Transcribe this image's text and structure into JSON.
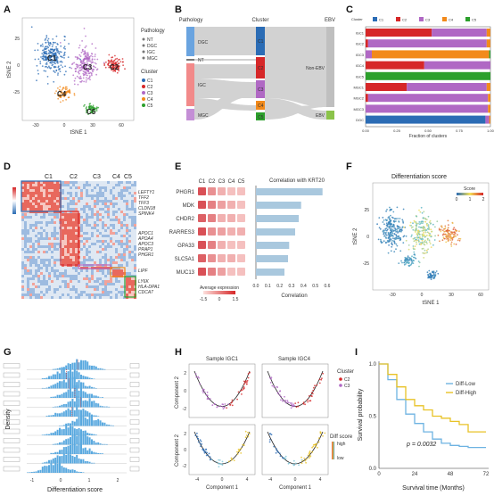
{
  "colors": {
    "C1": "#2b6cb5",
    "C2": "#d62728",
    "C3": "#b068c4",
    "C4": "#f28a1b",
    "C5": "#2ca02c",
    "blue_light": "#6eb3e2",
    "pathology_DGC": "#6aa4e0",
    "pathology_NT": "#777777",
    "pathology_IGC": "#f28a8a",
    "pathology_MGC": "#c48fd6"
  },
  "panelA": {
    "label": "A",
    "xlabel": "tSNE 1",
    "ylabel": "tSNE 2",
    "xticks": [
      "-30",
      "0",
      "30",
      "60"
    ],
    "yticks": [
      "25",
      "0",
      "-25"
    ],
    "cluster_labels": [
      "C1",
      "C2",
      "C3",
      "C4",
      "C5"
    ],
    "legend_pathology_title": "Pathology",
    "legend_pathology": [
      "NT",
      "DGC",
      "IGC",
      "MGC"
    ],
    "legend_cluster_title": "Cluster",
    "legend_cluster": [
      "C1",
      "C2",
      "C3",
      "C4",
      "C5"
    ]
  },
  "panelB": {
    "label": "B",
    "col_titles": [
      "Pathology",
      "Cluster",
      "EBV"
    ],
    "pathology": [
      "DGC",
      "NT",
      "IGC",
      "MGC"
    ],
    "cluster": [
      "C1",
      "C2",
      "C3",
      "C4",
      "C5"
    ],
    "ebv": [
      "Non-EBV",
      "EBV"
    ]
  },
  "panelC": {
    "label": "C",
    "legend_title": "Cluster",
    "legend": [
      "C1",
      "C2",
      "C3",
      "C4",
      "C5"
    ],
    "xlabel": "Fraction of clusters",
    "xticks": [
      "0.00",
      "0.25",
      "0.50",
      "0.75",
      "1.00"
    ]
  },
  "chart_data": [
    {
      "type": "bar",
      "orientation": "horizontal-stacked",
      "categories": [
        "IGC1",
        "IGC2",
        "IGC3",
        "IGC4",
        "IGC5",
        "MGC1",
        "MGC2",
        "MGC3",
        "DGC"
      ],
      "series": [
        {
          "name": "C1",
          "values": [
            0.0,
            0.0,
            0.0,
            0.0,
            0.0,
            0.0,
            0.0,
            0.0,
            0.96
          ]
        },
        {
          "name": "C2",
          "values": [
            0.53,
            0.02,
            0.0,
            0.47,
            0.0,
            0.33,
            0.02,
            0.0,
            0.0
          ]
        },
        {
          "name": "C3",
          "values": [
            0.44,
            0.95,
            0.05,
            0.53,
            0.0,
            0.64,
            0.96,
            0.98,
            0.03
          ]
        },
        {
          "name": "C4",
          "values": [
            0.03,
            0.03,
            0.94,
            0.0,
            0.0,
            0.03,
            0.02,
            0.02,
            0.01
          ]
        },
        {
          "name": "C5",
          "values": [
            0.0,
            0.0,
            0.01,
            0.0,
            1.0,
            0.0,
            0.0,
            0.0,
            0.0
          ]
        }
      ],
      "xlabel": "Fraction of clusters",
      "xlim": [
        0,
        1
      ]
    },
    {
      "type": "bar",
      "orientation": "horizontal",
      "categories": [
        "PHGR1",
        "MDK",
        "CHDR2",
        "RARRES3",
        "GPA33",
        "SLC5A1",
        "MUC13"
      ],
      "values": [
        0.56,
        0.38,
        0.36,
        0.33,
        0.28,
        0.27,
        0.24
      ],
      "title": "Correlation with KRT20",
      "xlabel": "Correlation",
      "xlim": [
        0,
        0.6
      ]
    },
    {
      "type": "line",
      "title": "",
      "xlabel": "Survival time (Months)",
      "ylabel": "Survival probability",
      "series": [
        {
          "name": "Diff-Low",
          "x": [
            0,
            6,
            12,
            18,
            24,
            30,
            36,
            42,
            48,
            54,
            60,
            72
          ],
          "y": [
            1.0,
            0.85,
            0.66,
            0.52,
            0.43,
            0.35,
            0.28,
            0.24,
            0.22,
            0.21,
            0.2,
            0.2
          ]
        },
        {
          "name": "Diff-High",
          "x": [
            0,
            6,
            12,
            18,
            24,
            30,
            36,
            42,
            48,
            54,
            60,
            72
          ],
          "y": [
            1.0,
            0.9,
            0.78,
            0.66,
            0.6,
            0.56,
            0.5,
            0.48,
            0.45,
            0.42,
            0.35,
            0.35
          ]
        }
      ],
      "xlim": [
        0,
        72
      ],
      "ylim": [
        0,
        1.0
      ]
    }
  ],
  "panelD": {
    "label": "D",
    "cols": [
      "C1",
      "C2",
      "C3",
      "C4",
      "C5"
    ],
    "genes_group1": [
      "LEFTY1",
      "TFF2",
      "TFF3",
      "CLDN18",
      "SPINK4"
    ],
    "genes_group2": [
      "APOC1",
      "APOA4",
      "APOC3",
      "PRAP1",
      "PHGR1"
    ],
    "genes_group3": [
      "LIPF"
    ],
    "genes_group4": [
      "LY6K",
      "HLA-DPA1",
      "CDCA7"
    ]
  },
  "panelE": {
    "label": "E",
    "genes": [
      "PHGR1",
      "MDK",
      "CHDR2",
      "RARRES3",
      "GPA33",
      "SLC5A1",
      "MUC13"
    ],
    "cols": [
      "C1",
      "C2",
      "C3",
      "C4",
      "C5"
    ],
    "corr_title": "Correlation with KRT20",
    "legend_title": "Average expression",
    "legend_ticks": [
      "-1.5",
      "0",
      "1.5"
    ],
    "xlabel": "Correlation",
    "xticks": [
      "0.0",
      "0.1",
      "0.2",
      "0.3",
      "0.4",
      "0.5",
      "0.6"
    ]
  },
  "panelF": {
    "label": "F",
    "title": "Differentiation score",
    "legend_title": "Score",
    "legend_ticks": [
      "0",
      "1",
      "2"
    ],
    "xlabel": "tSNE 1",
    "ylabel": "tSNE 2",
    "xticks": [
      "-30",
      "0",
      "30",
      "60"
    ],
    "yticks": [
      "25",
      "0",
      "-25"
    ]
  },
  "panelG": {
    "label": "G",
    "ylabel": "Density",
    "xlabel": "Differentiation score",
    "xticks": [
      "-1",
      "0",
      "1",
      "2"
    ]
  },
  "panelH": {
    "label": "H",
    "title_left": "Sample IGC1",
    "title_right": "Sample IGC4",
    "legend_cluster_title": "Cluster",
    "legend_cluster": [
      "C2",
      "C3"
    ],
    "legend_score_title": "Diff score",
    "legend_score": [
      "high",
      "low"
    ],
    "xlabel": "Component 1",
    "ylabel": "Component 2",
    "xticks": [
      "-4",
      "0",
      "4"
    ],
    "yticks": [
      "2",
      "0",
      "-2"
    ]
  },
  "panelI": {
    "label": "I",
    "legend": [
      "Diff-Low",
      "Diff-High"
    ],
    "pvalue": "p = 0.0032",
    "ylabel": "Survival probability",
    "xlabel": "Survival time (Months)",
    "xticks": [
      "0",
      "24",
      "48",
      "72"
    ],
    "yticks": [
      "0.0",
      "0.5",
      "1.0"
    ]
  }
}
